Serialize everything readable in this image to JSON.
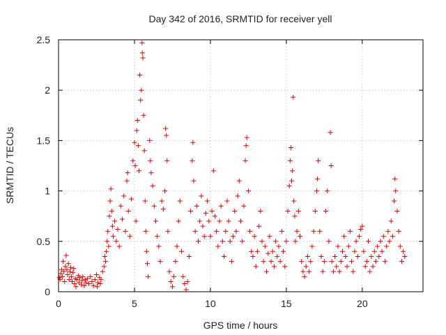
{
  "chart_data": {
    "type": "scatter",
    "title": "Day 342 of 2016, SRMTID for receiver yell",
    "xlabel": "GPS time / hours",
    "ylabel": "SRMTID / TECUs",
    "xlim": [
      0,
      24
    ],
    "ylim": [
      0,
      2.5
    ],
    "xticks": [
      0,
      5,
      10,
      15,
      20
    ],
    "xtick_labels": [
      "0",
      "5",
      "10",
      "15",
      "20"
    ],
    "yticks": [
      0,
      0.5,
      1,
      1.5,
      2,
      2.5
    ],
    "ytick_labels": [
      "0",
      "0.5",
      "1",
      "1.5",
      "2",
      "2.5"
    ],
    "grid": true,
    "marker": "+",
    "color": "#e00000",
    "series": [
      {
        "name": "SRMTID",
        "points": [
          [
            0.05,
            0.14
          ],
          [
            0.1,
            0.12
          ],
          [
            0.15,
            0.18
          ],
          [
            0.2,
            0.22
          ],
          [
            0.25,
            0.15
          ],
          [
            0.3,
            0.3
          ],
          [
            0.35,
            0.2
          ],
          [
            0.4,
            0.1
          ],
          [
            0.45,
            0.25
          ],
          [
            0.5,
            0.36
          ],
          [
            0.55,
            0.22
          ],
          [
            0.6,
            0.17
          ],
          [
            0.65,
            0.28
          ],
          [
            0.7,
            0.12
          ],
          [
            0.75,
            0.2
          ],
          [
            0.8,
            0.24
          ],
          [
            0.85,
            0.15
          ],
          [
            0.9,
            0.1
          ],
          [
            0.95,
            0.19
          ],
          [
            1.0,
            0.23
          ],
          [
            1.05,
            0.08
          ],
          [
            1.1,
            0.13
          ],
          [
            1.15,
            0.05
          ],
          [
            1.2,
            0.12
          ],
          [
            1.3,
            0.16
          ],
          [
            1.35,
            0.09
          ],
          [
            1.4,
            0.14
          ],
          [
            1.5,
            0.07
          ],
          [
            1.55,
            0.11
          ],
          [
            1.6,
            0.15
          ],
          [
            1.7,
            0.06
          ],
          [
            1.75,
            0.12
          ],
          [
            1.8,
            0.09
          ],
          [
            1.9,
            0.13
          ],
          [
            2.0,
            0.08
          ],
          [
            2.1,
            0.15
          ],
          [
            2.2,
            0.1
          ],
          [
            2.3,
            0.06
          ],
          [
            2.4,
            0.12
          ],
          [
            2.5,
            0.17
          ],
          [
            2.55,
            0.05
          ],
          [
            2.6,
            0.09
          ],
          [
            2.7,
            0.14
          ],
          [
            2.75,
            0.08
          ],
          [
            2.8,
            0.12
          ],
          [
            2.9,
            0.2
          ],
          [
            3.0,
            0.25
          ],
          [
            3.05,
            0.35
          ],
          [
            3.1,
            0.3
          ],
          [
            3.15,
            0.4
          ],
          [
            3.2,
            0.5
          ],
          [
            3.25,
            0.6
          ],
          [
            3.3,
            0.45
          ],
          [
            3.35,
            0.75
          ],
          [
            3.4,
            0.9
          ],
          [
            3.45,
            1.02
          ],
          [
            3.5,
            0.8
          ],
          [
            3.55,
            0.65
          ],
          [
            3.6,
            0.55
          ],
          [
            3.7,
            0.7
          ],
          [
            3.8,
            0.5
          ],
          [
            3.9,
            0.62
          ],
          [
            4.0,
            0.45
          ],
          [
            4.1,
            0.85
          ],
          [
            4.2,
            0.72
          ],
          [
            4.3,
            0.95
          ],
          [
            4.4,
            0.6
          ],
          [
            4.5,
            1.1
          ],
          [
            4.55,
            1.18
          ],
          [
            4.6,
            0.8
          ],
          [
            4.7,
            0.55
          ],
          [
            4.8,
            0.92
          ],
          [
            4.9,
            1.3
          ],
          [
            5.0,
            1.48
          ],
          [
            5.05,
            1.25
          ],
          [
            5.1,
            0.7
          ],
          [
            5.15,
            1.6
          ],
          [
            5.2,
            1.7
          ],
          [
            5.25,
            1.45
          ],
          [
            5.3,
            1.2
          ],
          [
            5.35,
            2.15
          ],
          [
            5.4,
            1.9
          ],
          [
            5.45,
            2.0
          ],
          [
            5.5,
            2.47
          ],
          [
            5.52,
            2.37
          ],
          [
            5.55,
            2.32
          ],
          [
            5.6,
            1.75
          ],
          [
            5.65,
            1.4
          ],
          [
            5.7,
            0.9
          ],
          [
            5.75,
            0.6
          ],
          [
            5.8,
            0.4
          ],
          [
            5.85,
            0.28
          ],
          [
            5.9,
            0.15
          ],
          [
            6.0,
            1.5
          ],
          [
            6.05,
            1.3
          ],
          [
            6.1,
            1.18
          ],
          [
            6.2,
            1.05
          ],
          [
            6.3,
            0.85
          ],
          [
            6.4,
            0.7
          ],
          [
            6.5,
            0.55
          ],
          [
            6.6,
            0.45
          ],
          [
            6.7,
            0.3
          ],
          [
            6.8,
            0.9
          ],
          [
            6.9,
            0.82
          ],
          [
            7.0,
            1.0
          ],
          [
            7.05,
            1.62
          ],
          [
            7.1,
            1.55
          ],
          [
            7.15,
            1.3
          ],
          [
            7.2,
            0.6
          ],
          [
            7.3,
            0.2
          ],
          [
            7.4,
            0.1
          ],
          [
            7.5,
            0.05
          ],
          [
            7.6,
            0.15
          ],
          [
            7.7,
            0.3
          ],
          [
            7.8,
            0.45
          ],
          [
            7.9,
            0.7
          ],
          [
            8.0,
            0.9
          ],
          [
            8.1,
            0.4
          ],
          [
            8.2,
            0.15
          ],
          [
            8.3,
            0.08
          ],
          [
            8.4,
            0.02
          ],
          [
            8.5,
            0.1
          ],
          [
            8.6,
            0.35
          ],
          [
            8.7,
            0.8
          ],
          [
            8.8,
            1.3
          ],
          [
            8.85,
            1.48
          ],
          [
            8.9,
            1.1
          ],
          [
            9.0,
            0.6
          ],
          [
            9.1,
            0.85
          ],
          [
            9.2,
            0.5
          ],
          [
            9.3,
            0.7
          ],
          [
            9.4,
            0.95
          ],
          [
            9.5,
            0.65
          ],
          [
            9.6,
            0.55
          ],
          [
            9.7,
            0.78
          ],
          [
            9.8,
            0.9
          ],
          [
            9.9,
            0.7
          ],
          [
            10.0,
            0.55
          ],
          [
            10.1,
            0.8
          ],
          [
            10.2,
            1.2
          ],
          [
            10.3,
            0.75
          ],
          [
            10.4,
            0.6
          ],
          [
            10.5,
            0.45
          ],
          [
            10.6,
            0.7
          ],
          [
            10.7,
            0.85
          ],
          [
            10.8,
            0.5
          ],
          [
            10.9,
            0.35
          ],
          [
            11.0,
            0.6
          ],
          [
            11.1,
            0.9
          ],
          [
            11.2,
            0.7
          ],
          [
            11.3,
            0.5
          ],
          [
            11.4,
            0.3
          ],
          [
            11.5,
            0.55
          ],
          [
            11.6,
            0.8
          ],
          [
            11.7,
            0.6
          ],
          [
            11.8,
            0.95
          ],
          [
            11.9,
            1.1
          ],
          [
            12.0,
            0.7
          ],
          [
            12.1,
            0.5
          ],
          [
            12.2,
            0.85
          ],
          [
            12.3,
            1.3
          ],
          [
            12.35,
            1.45
          ],
          [
            12.4,
            1.53
          ],
          [
            12.5,
            1.0
          ],
          [
            12.6,
            0.6
          ],
          [
            12.7,
            0.4
          ],
          [
            12.8,
            0.35
          ],
          [
            12.9,
            0.55
          ],
          [
            13.0,
            0.25
          ],
          [
            13.1,
            0.4
          ],
          [
            13.2,
            0.65
          ],
          [
            13.3,
            0.8
          ],
          [
            13.4,
            0.5
          ],
          [
            13.5,
            0.3
          ],
          [
            13.6,
            0.45
          ],
          [
            13.7,
            0.2
          ],
          [
            13.8,
            0.38
          ],
          [
            13.9,
            0.55
          ],
          [
            14.0,
            0.3
          ],
          [
            14.1,
            0.4
          ],
          [
            14.2,
            0.25
          ],
          [
            14.3,
            0.5
          ],
          [
            14.4,
            0.35
          ],
          [
            14.5,
            0.45
          ],
          [
            14.6,
            0.3
          ],
          [
            14.7,
            0.6
          ],
          [
            14.8,
            0.4
          ],
          [
            14.9,
            0.25
          ],
          [
            15.0,
            0.5
          ],
          [
            15.1,
            0.8
          ],
          [
            15.2,
            1.05
          ],
          [
            15.25,
            1.3
          ],
          [
            15.3,
            1.43
          ],
          [
            15.35,
            1.1
          ],
          [
            15.4,
            1.2
          ],
          [
            15.45,
            1.93
          ],
          [
            15.5,
            0.9
          ],
          [
            15.55,
            0.75
          ],
          [
            15.6,
            0.5
          ],
          [
            15.7,
            0.6
          ],
          [
            15.8,
            0.8
          ],
          [
            15.9,
            0.55
          ],
          [
            16.0,
            0.3
          ],
          [
            16.1,
            0.2
          ],
          [
            16.2,
            0.15
          ],
          [
            16.3,
            0.25
          ],
          [
            16.4,
            0.35
          ],
          [
            16.5,
            0.2
          ],
          [
            16.6,
            0.3
          ],
          [
            16.7,
            0.45
          ],
          [
            16.8,
            0.6
          ],
          [
            16.9,
            0.8
          ],
          [
            17.0,
            1.0
          ],
          [
            17.05,
            1.12
          ],
          [
            17.1,
            1.3
          ],
          [
            17.2,
            0.6
          ],
          [
            17.3,
            0.35
          ],
          [
            17.4,
            0.2
          ],
          [
            17.5,
            0.3
          ],
          [
            17.6,
            0.8
          ],
          [
            17.7,
            1.0
          ],
          [
            17.8,
            0.5
          ],
          [
            17.9,
            1.58
          ],
          [
            17.95,
            1.25
          ],
          [
            18.0,
            0.3
          ],
          [
            18.1,
            0.2
          ],
          [
            18.2,
            0.35
          ],
          [
            18.3,
            0.25
          ],
          [
            18.4,
            0.45
          ],
          [
            18.5,
            0.2
          ],
          [
            18.6,
            0.3
          ],
          [
            18.7,
            0.4
          ],
          [
            18.8,
            0.55
          ],
          [
            18.9,
            0.35
          ],
          [
            19.0,
            0.25
          ],
          [
            19.1,
            0.45
          ],
          [
            19.2,
            0.6
          ],
          [
            19.3,
            0.3
          ],
          [
            19.4,
            0.2
          ],
          [
            19.5,
            0.4
          ],
          [
            19.6,
            0.5
          ],
          [
            19.7,
            0.35
          ],
          [
            19.8,
            0.55
          ],
          [
            19.9,
            0.62
          ],
          [
            20.0,
            0.65
          ],
          [
            20.1,
            0.4
          ],
          [
            20.2,
            0.25
          ],
          [
            20.3,
            0.3
          ],
          [
            20.4,
            0.5
          ],
          [
            20.5,
            0.2
          ],
          [
            20.6,
            0.35
          ],
          [
            20.7,
            0.25
          ],
          [
            20.8,
            0.4
          ],
          [
            20.9,
            0.3
          ],
          [
            21.0,
            0.45
          ],
          [
            21.1,
            0.35
          ],
          [
            21.2,
            0.5
          ],
          [
            21.3,
            0.4
          ],
          [
            21.4,
            0.55
          ],
          [
            21.5,
            0.3
          ],
          [
            21.6,
            0.45
          ],
          [
            21.7,
            0.6
          ],
          [
            21.8,
            0.5
          ],
          [
            21.9,
            0.7
          ],
          [
            22.0,
            0.55
          ],
          [
            22.1,
            0.9
          ],
          [
            22.15,
            1.12
          ],
          [
            22.2,
            1.0
          ],
          [
            22.3,
            0.8
          ],
          [
            22.4,
            0.6
          ],
          [
            22.5,
            0.45
          ],
          [
            22.6,
            0.3
          ],
          [
            22.7,
            0.4
          ],
          [
            22.8,
            0.35
          ]
        ]
      }
    ]
  }
}
